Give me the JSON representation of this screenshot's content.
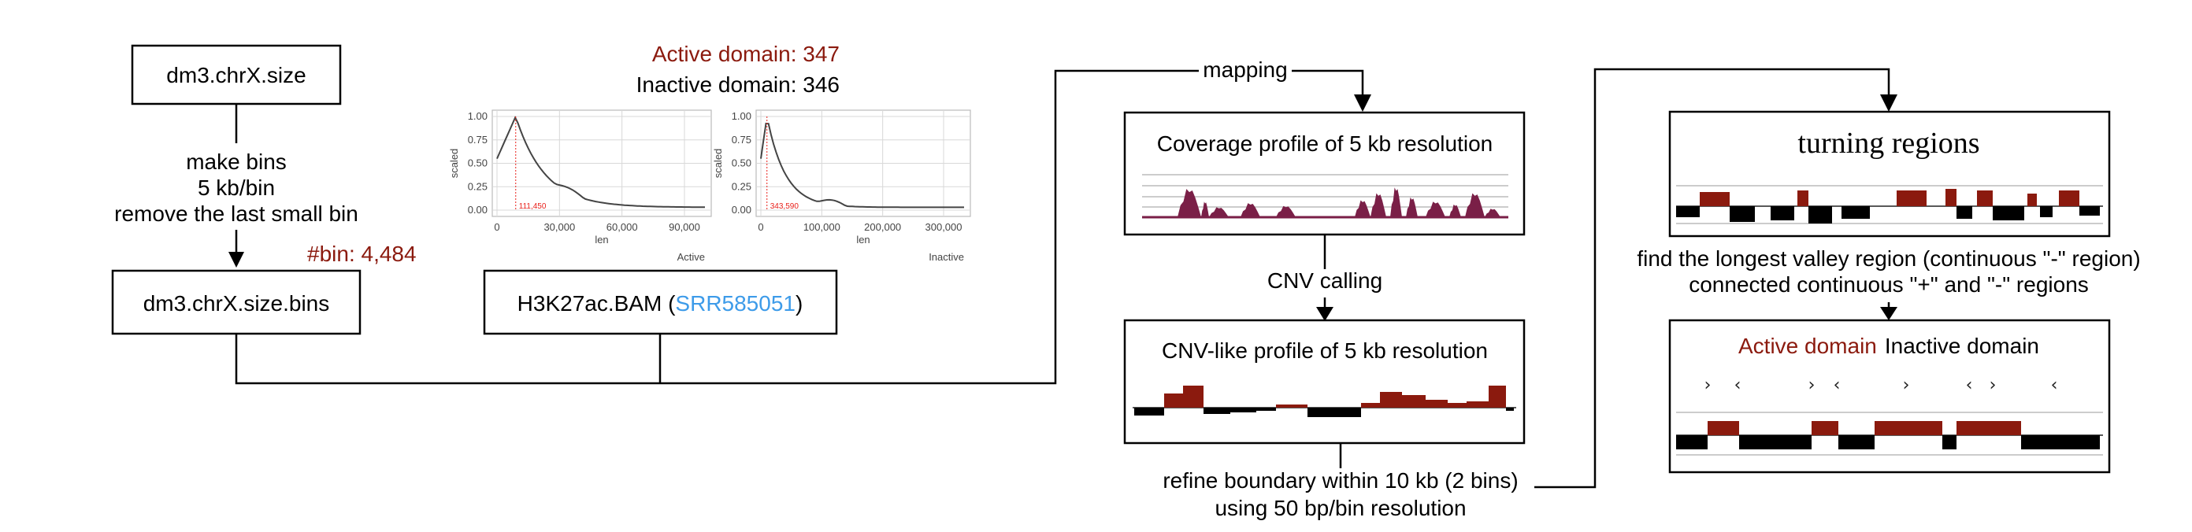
{
  "boxes": {
    "chr_size": "dm3.chrX.size",
    "chr_bins": "dm3.chrX.size.bins",
    "bam_prefix": "H3K27ac.BAM (",
    "bam_accession": "SRR585051",
    "bam_suffix": ")",
    "coverage_title": "Coverage profile of 5 kb resolution",
    "cnv_title": "CNV-like profile of 5 kb resolution",
    "turning_title": "turning regions",
    "domain_active": "Active domain",
    "domain_inactive": "Inactive domain"
  },
  "steps": {
    "make_bins_1": "make bins",
    "make_bins_2": "5 kb/bin",
    "make_bins_3": "remove the last small bin",
    "bin_count": "#bin: 4,484",
    "mapping": "mapping",
    "cnv_calling": "CNV calling",
    "refine_1": "refine boundary within 10 kb (2 bins)",
    "refine_2": "using 50 bp/bin resolution",
    "valley_1": "find the longest valley region (continuous \"-\" region)",
    "valley_2": "connected continuous \"+\" and \"-\" regions"
  },
  "domains": {
    "active_count": "Active domain: 347",
    "inactive_count": "Inactive domain: 346"
  },
  "density_plots": [
    {
      "ylabel": "scaled",
      "xlabel": "len",
      "facet": "Active",
      "peak_label": "111,450",
      "yticks": [
        "1.00",
        "0.75",
        "0.50",
        "0.25",
        "0.00"
      ],
      "xticks": [
        "0",
        "30,000",
        "60,000",
        "90,000"
      ]
    },
    {
      "ylabel": "scaled",
      "xlabel": "len",
      "facet": "Inactive",
      "peak_label": "343,590",
      "yticks": [
        "1.00",
        "0.75",
        "0.50",
        "0.25",
        "0.00"
      ],
      "xticks": [
        "0",
        "100,000",
        "200,000",
        "300,000"
      ]
    }
  ],
  "colors": {
    "accent_red": "#8b1a0e",
    "link_blue": "#3d9be9",
    "coverage_fill": "#7a1f47",
    "negative_fill": "#000000"
  }
}
